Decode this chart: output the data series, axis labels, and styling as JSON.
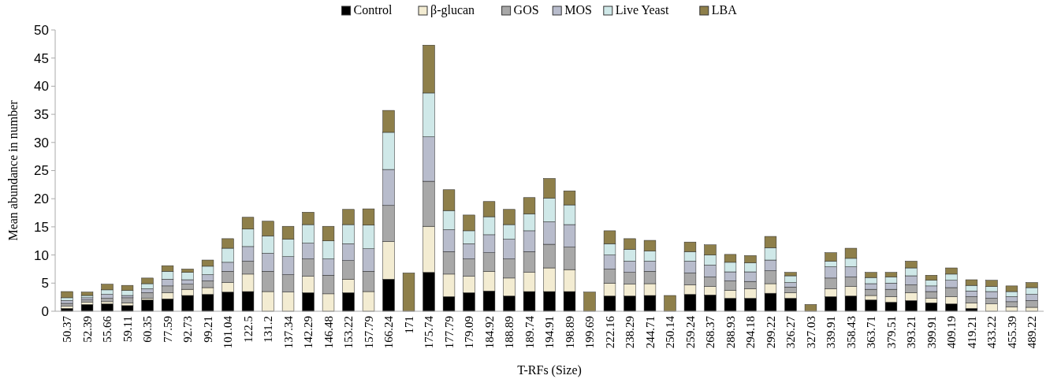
{
  "chart_data": {
    "type": "bar",
    "stacked": true,
    "xlabel": "T-RFs (Size)",
    "ylabel": "Mean abundance in number",
    "legend": "top",
    "grid": false,
    "ylim": [
      0,
      50
    ],
    "yticks": [
      0,
      5,
      10,
      15,
      20,
      25,
      30,
      35,
      40,
      45,
      50
    ],
    "categories": [
      "50.37",
      "52.39",
      "55.66",
      "59.11",
      "60.35",
      "77.59",
      "92.73",
      "99.21",
      "101.04",
      "122.5",
      "131.2",
      "137.34",
      "142.29",
      "146.48",
      "153.22",
      "157.79",
      "166.24",
      "171",
      "175.74",
      "177.79",
      "179.09",
      "184.92",
      "188.89",
      "189.74",
      "194.91",
      "198.89",
      "199.69",
      "222.16",
      "238.29",
      "244.71",
      "250.14",
      "259.24",
      "268.37",
      "288.93",
      "294.18",
      "299.22",
      "326.27",
      "327.03",
      "339.91",
      "358.43",
      "363.71",
      "379.51",
      "393.21",
      "399.91",
      "409.19",
      "419.21",
      "433.22",
      "455.39",
      "489.22"
    ],
    "series": [
      {
        "name": "Control",
        "color": "#000000",
        "values": [
          0.5,
          1.2,
          1.3,
          1.0,
          2.0,
          2.2,
          2.8,
          3.0,
          3.4,
          3.5,
          0,
          0,
          3.3,
          0,
          3.3,
          0,
          5.7,
          0,
          6.9,
          2.6,
          3.3,
          3.6,
          2.7,
          3.5,
          3.5,
          3.5,
          0,
          2.7,
          2.7,
          2.8,
          0,
          3.0,
          2.9,
          2.3,
          2.3,
          3.2,
          2.3,
          0,
          2.6,
          2.7,
          2.0,
          1.6,
          1.9,
          1.5,
          1.3,
          0.5,
          0,
          0,
          0
        ]
      },
      {
        "name": "β-glucan",
        "color": "#f3ecd2",
        "values": [
          0.4,
          0.4,
          0.4,
          0.5,
          0.3,
          1.1,
          1.1,
          1.2,
          1.7,
          3.1,
          3.5,
          3.4,
          2.9,
          3.1,
          2.4,
          3.5,
          6.7,
          0,
          8.2,
          4.0,
          2.9,
          3.5,
          3.2,
          3.4,
          4.2,
          3.9,
          0,
          2.3,
          2.1,
          2.1,
          0,
          1.7,
          1.5,
          1.4,
          1.7,
          1.7,
          1.0,
          0,
          1.4,
          1.7,
          0.8,
          1.0,
          1.4,
          0.8,
          1.3,
          1.0,
          1.3,
          0.8,
          0.7
        ]
      },
      {
        "name": "GOS",
        "color": "#a8a8a8",
        "values": [
          0.5,
          0.4,
          0.6,
          0.9,
          1.0,
          1.2,
          0.9,
          1.2,
          2.0,
          2.3,
          3.6,
          3.1,
          3.1,
          3.3,
          3.3,
          3.6,
          6.4,
          0,
          8.0,
          4.0,
          3.1,
          3.3,
          3.4,
          3.7,
          4.2,
          4.0,
          0,
          2.5,
          2.1,
          2.2,
          0,
          2.1,
          1.7,
          1.7,
          1.3,
          2.3,
          1.0,
          0,
          1.9,
          1.7,
          1.1,
          1.3,
          1.4,
          1.2,
          1.6,
          1.1,
          1.0,
          0.9,
          1.2
        ]
      },
      {
        "name": "MOS",
        "color": "#b8bccc",
        "values": [
          0.5,
          0.4,
          0.7,
          0.4,
          0.7,
          1.2,
          0.8,
          1.1,
          1.6,
          2.6,
          3.2,
          3.2,
          2.8,
          2.9,
          3.0,
          4.0,
          6.4,
          0,
          7.9,
          3.9,
          2.7,
          3.2,
          3.5,
          3.7,
          4.0,
          4.0,
          0,
          2.5,
          2.0,
          1.8,
          0,
          2.1,
          2.1,
          1.6,
          1.7,
          1.9,
          0.8,
          0,
          2.0,
          1.8,
          1.0,
          1.1,
          1.6,
          1.0,
          1.3,
          1.0,
          1.2,
          0.9,
          1.1
        ]
      },
      {
        "name": "Live Yeast",
        "color": "#cfe8e8",
        "values": [
          0.5,
          0.4,
          0.8,
          0.9,
          0.9,
          1.4,
          1.3,
          1.5,
          2.5,
          3.1,
          3.1,
          3.1,
          3.3,
          3.2,
          3.4,
          4.2,
          6.6,
          0,
          7.8,
          3.4,
          2.3,
          3.2,
          2.6,
          3.0,
          4.2,
          3.5,
          0,
          2.0,
          2.1,
          1.8,
          0,
          1.7,
          1.8,
          1.7,
          1.6,
          2.2,
          1.2,
          0,
          1.0,
          1.5,
          1.1,
          1.1,
          1.4,
          1.0,
          1.1,
          1.0,
          0.9,
          0.9,
          1.2
        ]
      },
      {
        "name": "LBA",
        "color": "#8e7f4a",
        "values": [
          1.1,
          0.6,
          1.0,
          0.9,
          1.0,
          1.0,
          0.6,
          1.1,
          1.7,
          2.1,
          2.6,
          2.3,
          2.2,
          2.6,
          2.7,
          2.9,
          3.9,
          6.8,
          8.5,
          3.7,
          2.8,
          2.7,
          2.7,
          2.9,
          3.5,
          2.5,
          3.4,
          2.3,
          1.9,
          1.9,
          2.8,
          1.7,
          1.8,
          1.4,
          1.3,
          2.0,
          0.6,
          1.2,
          1.5,
          1.8,
          0.9,
          0.8,
          1.2,
          0.9,
          1.1,
          1.0,
          1.1,
          1.0,
          0.9
        ]
      }
    ]
  }
}
